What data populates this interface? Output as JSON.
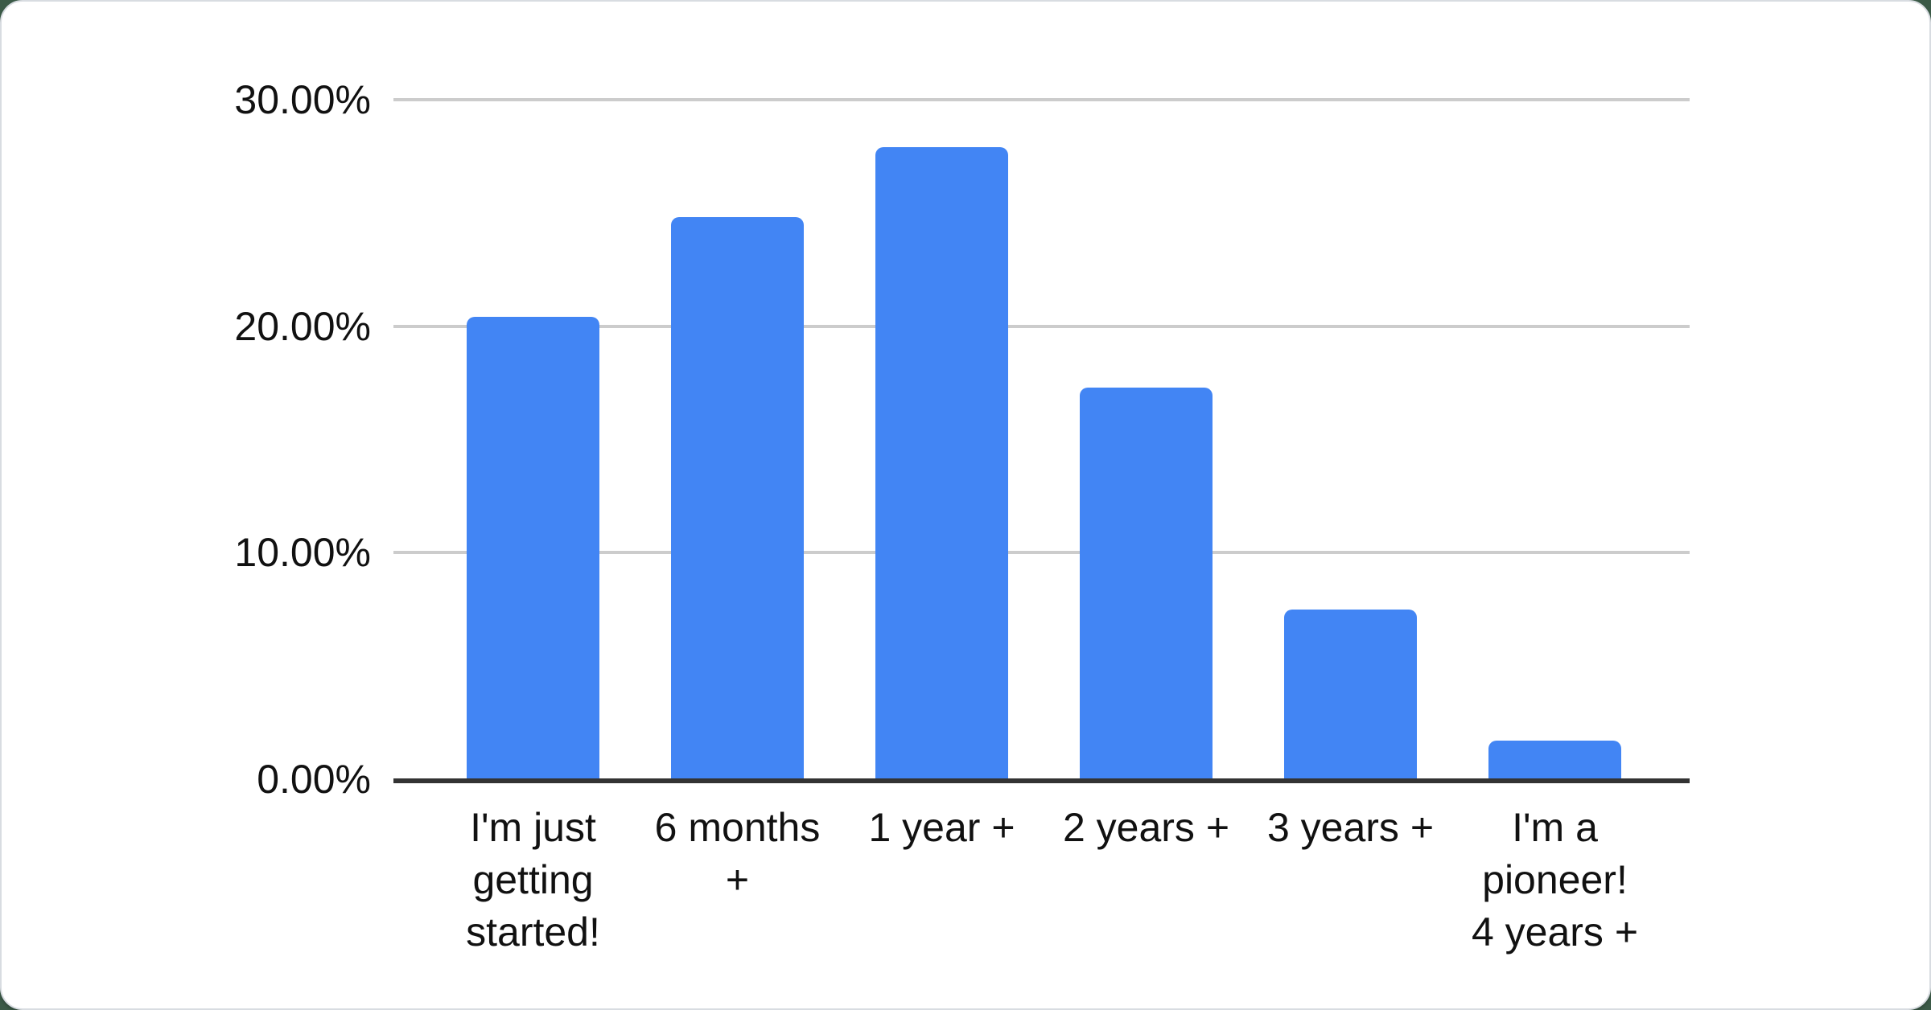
{
  "chart_data": {
    "type": "bar",
    "categories": [
      "I'm just getting started!",
      "6 months +",
      "1 year +",
      "2 years +",
      "3 years +",
      "I'm a pioneer! 4 years +"
    ],
    "category_display_lines": [
      [
        "I'm just",
        "getting",
        "started!"
      ],
      [
        "6 months",
        "+"
      ],
      [
        "1 year +"
      ],
      [
        "2 years +"
      ],
      [
        "3 years +"
      ],
      [
        "I'm a",
        "pioneer!",
        "4 years +"
      ]
    ],
    "values": [
      20.4,
      24.8,
      27.9,
      17.3,
      7.5,
      1.7
    ],
    "value_unit": "%",
    "title": "",
    "xlabel": "",
    "ylabel": "",
    "ylim": [
      0,
      30
    ],
    "y_ticks": [
      {
        "value": 0,
        "label": "0.00%"
      },
      {
        "value": 10,
        "label": "10.00%"
      },
      {
        "value": 20,
        "label": "20.00%"
      },
      {
        "value": 30,
        "label": "30.00%"
      }
    ],
    "grid": true,
    "legend": "none",
    "colors": {
      "bar": "#4285f4",
      "gridline": "#cccccc",
      "axis_line": "#333333",
      "label_text": "#111111",
      "card_background": "#ffffff",
      "card_border": "#d8dce1",
      "page_background": "#3b5a47"
    }
  }
}
